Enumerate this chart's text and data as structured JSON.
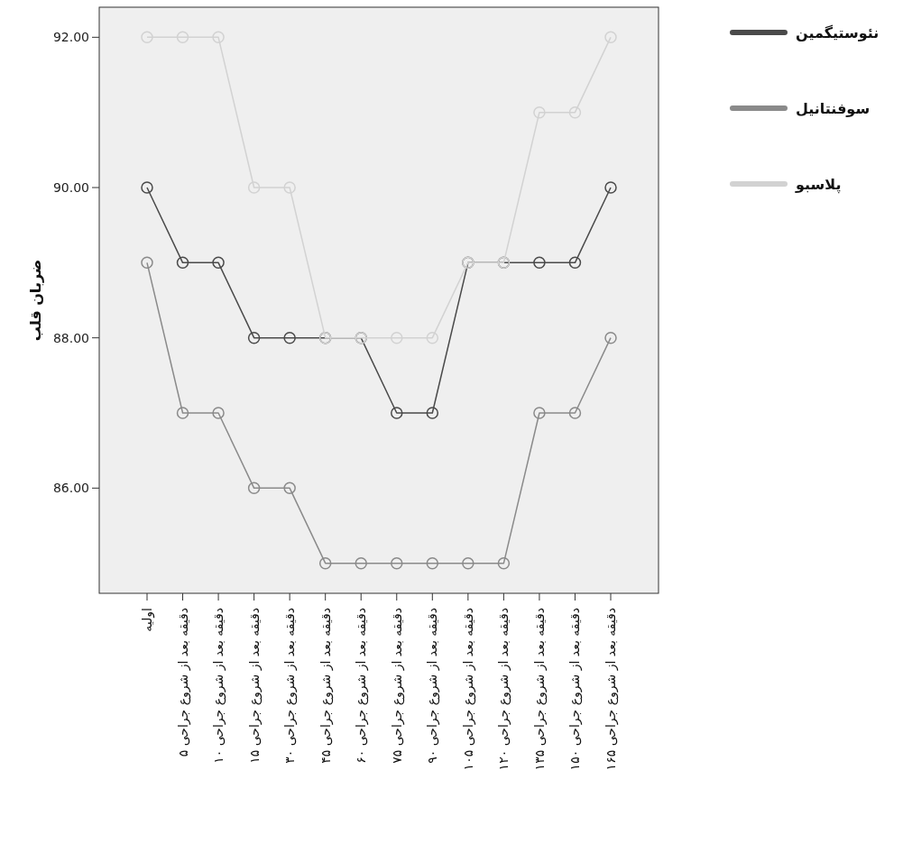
{
  "chart_data": {
    "type": "line",
    "ylabel": "ضربان قلب",
    "categories": [
      "اولیه",
      "۵ دقیقه بعد از شروع جراحی",
      "۱۰ دقیقه بعد از شروع جراحی",
      "۱۵ دقیقه بعد از شروع جراحی",
      "۳۰ دقیقه بعد از شروع جراحی",
      "۴۵ دقیقه بعد از شروع جراحی",
      "۶۰ دقیقه بعد از شروع جراحی",
      "۷۵ دقیقه بعد از شروع جراحی",
      "۹۰ دقیقه بعد از شروع جراحی",
      "۱۰۵ دقیقه بعد از شروع جراحی",
      "۱۲۰ دقیقه بعد از شروع جراحی",
      "۱۳۵ دقیقه بعد از شروع جراحی",
      "۱۵۰ دقیقه بعد از شروع جراحی",
      "۱۶۵ دقیقه بعد از شروع جراحی"
    ],
    "series": [
      {
        "name": "نئوستیگمین",
        "color": "#4a4a4a",
        "values": [
          90,
          89,
          89,
          88,
          88,
          88,
          88,
          87,
          87,
          89,
          89,
          89,
          89,
          90
        ]
      },
      {
        "name": "سوفنتانیل",
        "color": "#8a8a8a",
        "values": [
          89,
          87,
          87,
          86,
          86,
          85,
          85,
          85,
          85,
          85,
          85,
          87,
          87,
          88
        ]
      },
      {
        "name": "پلاسبو",
        "color": "#d2d2d2",
        "values": [
          92,
          92,
          92,
          90,
          90,
          88,
          88,
          88,
          88,
          89,
          89,
          91,
          91,
          92
        ]
      }
    ],
    "ylim": [
      84.6,
      92.4
    ],
    "yticks": [
      {
        "value": 86,
        "label": "86.00"
      },
      {
        "value": 88,
        "label": "88.00"
      },
      {
        "value": 90,
        "label": "90.00"
      },
      {
        "value": 92,
        "label": "92.00"
      }
    ],
    "grid": false,
    "legend": "top right",
    "marker": "circle",
    "line_style": "solid"
  }
}
